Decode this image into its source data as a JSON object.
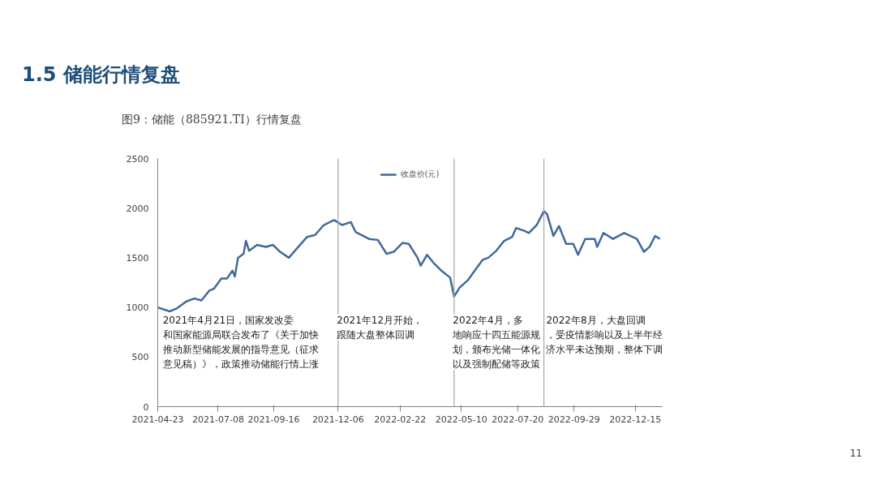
{
  "chart_data": {
    "type": "line",
    "title": "1.5 储能行情复盘",
    "subtitle": "图9：储能（885921.TI）行情复盘",
    "x": [
      "2021-04-23",
      "2021-05-08",
      "2021-05-17",
      "2021-05-29",
      "2021-06-08",
      "2021-06-17",
      "2021-06-27",
      "2021-07-03",
      "2021-07-12",
      "2021-07-19",
      "2021-07-26",
      "2021-07-29",
      "2021-08-02",
      "2021-08-09",
      "2021-08-12",
      "2021-08-16",
      "2021-08-26",
      "2021-09-06",
      "2021-09-15",
      "2021-09-24",
      "2021-10-05",
      "2021-10-17",
      "2021-10-28",
      "2021-11-07",
      "2021-11-18",
      "2021-12-01",
      "2021-12-11",
      "2021-12-22",
      "2021-12-28",
      "2022-01-14",
      "2022-01-25",
      "2022-02-05",
      "2022-02-14",
      "2022-02-25",
      "2022-03-05",
      "2022-03-16",
      "2022-03-20",
      "2022-03-28",
      "2022-04-05",
      "2022-04-15",
      "2022-04-26",
      "2022-05-01",
      "2022-05-08",
      "2022-05-19",
      "2022-05-27",
      "2022-06-06",
      "2022-06-13",
      "2022-06-23",
      "2022-07-03",
      "2022-07-13",
      "2022-07-18",
      "2022-07-29",
      "2022-08-03",
      "2022-08-13",
      "2022-08-22",
      "2022-08-26",
      "2022-09-03",
      "2022-09-10",
      "2022-09-19",
      "2022-09-28",
      "2022-10-04",
      "2022-10-13",
      "2022-10-25",
      "2022-10-28",
      "2022-11-05",
      "2022-11-17",
      "2022-12-01",
      "2022-12-17",
      "2022-12-26",
      "2023-01-02",
      "2023-01-09",
      "2023-01-15"
    ],
    "series": [
      {
        "name": "收盘价(元)",
        "color": "#41699b",
        "values": [
          1000,
          960,
          990,
          1060,
          1090,
          1070,
          1170,
          1190,
          1290,
          1290,
          1370,
          1310,
          1500,
          1540,
          1670,
          1570,
          1630,
          1610,
          1630,
          1560,
          1500,
          1610,
          1710,
          1730,
          1830,
          1880,
          1830,
          1860,
          1760,
          1690,
          1680,
          1540,
          1560,
          1650,
          1640,
          1500,
          1420,
          1530,
          1450,
          1370,
          1300,
          1110,
          1200,
          1280,
          1370,
          1480,
          1500,
          1570,
          1670,
          1710,
          1800,
          1770,
          1750,
          1830,
          1970,
          1940,
          1720,
          1820,
          1640,
          1640,
          1530,
          1690,
          1690,
          1610,
          1750,
          1690,
          1750,
          1690,
          1560,
          1610,
          1720,
          1690
        ]
      }
    ],
    "xlim": [
      "2021-04-23",
      "2023-01-18"
    ],
    "ylim": [
      0,
      2500
    ],
    "yticks": [
      0,
      500,
      1000,
      1500,
      2000,
      2500
    ],
    "xticks": [
      "2021-04-23",
      "2021-07-08",
      "2021-09-16",
      "2021-12-06",
      "2022-02-22",
      "2022-05-10",
      "2022-07-20",
      "2022-09-29",
      "2022-12-15"
    ],
    "ref_lines": [
      {
        "axis": "x",
        "value": "2021-12-06",
        "color": "#a6a6a6"
      },
      {
        "axis": "x",
        "value": "2022-05-01",
        "color": "#a6a6a6"
      },
      {
        "axis": "x",
        "value": "2022-08-22",
        "color": "#a6a6a6"
      }
    ],
    "annotations": [
      "2021年4月21日，国家发改委和国家能源局联合发布了《关于加快推动新型储能发展的指导意见（征求意见稿）》，政策推动储能行情上涨",
      "2021年12月开始，跟随大盘整体回调",
      "2022年4月，多地响应十四五能源规划，颁布光储一体化以及强制配储等政策",
      "2022年8月，大盘回调，受疫情影响以及上半年经济水平未达预期，整体下调",
      "11"
    ],
    "grid": false,
    "legend": "top",
    "marker": "none",
    "line_style": "solid"
  }
}
